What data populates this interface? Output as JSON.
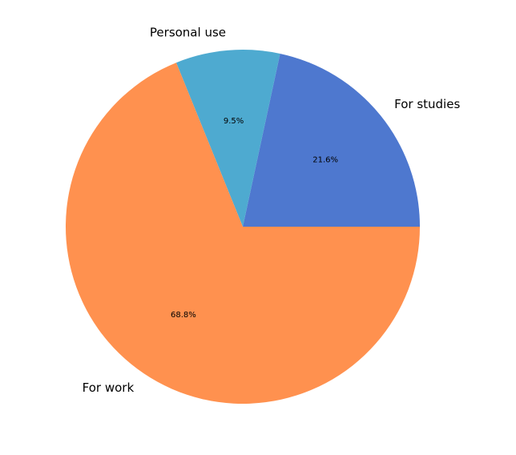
{
  "chart_data": {
    "type": "pie",
    "categories": [
      "For studies",
      "Personal use",
      "For work"
    ],
    "values": [
      21.6,
      9.5,
      68.8
    ],
    "value_labels": [
      "21.6%",
      "9.5%",
      "68.8%"
    ],
    "colors": [
      "#4e78cf",
      "#4eaad0",
      "#ff914f"
    ],
    "start_angle_deg": 0,
    "direction": "counterclockwise",
    "legend": "none",
    "title": ""
  }
}
